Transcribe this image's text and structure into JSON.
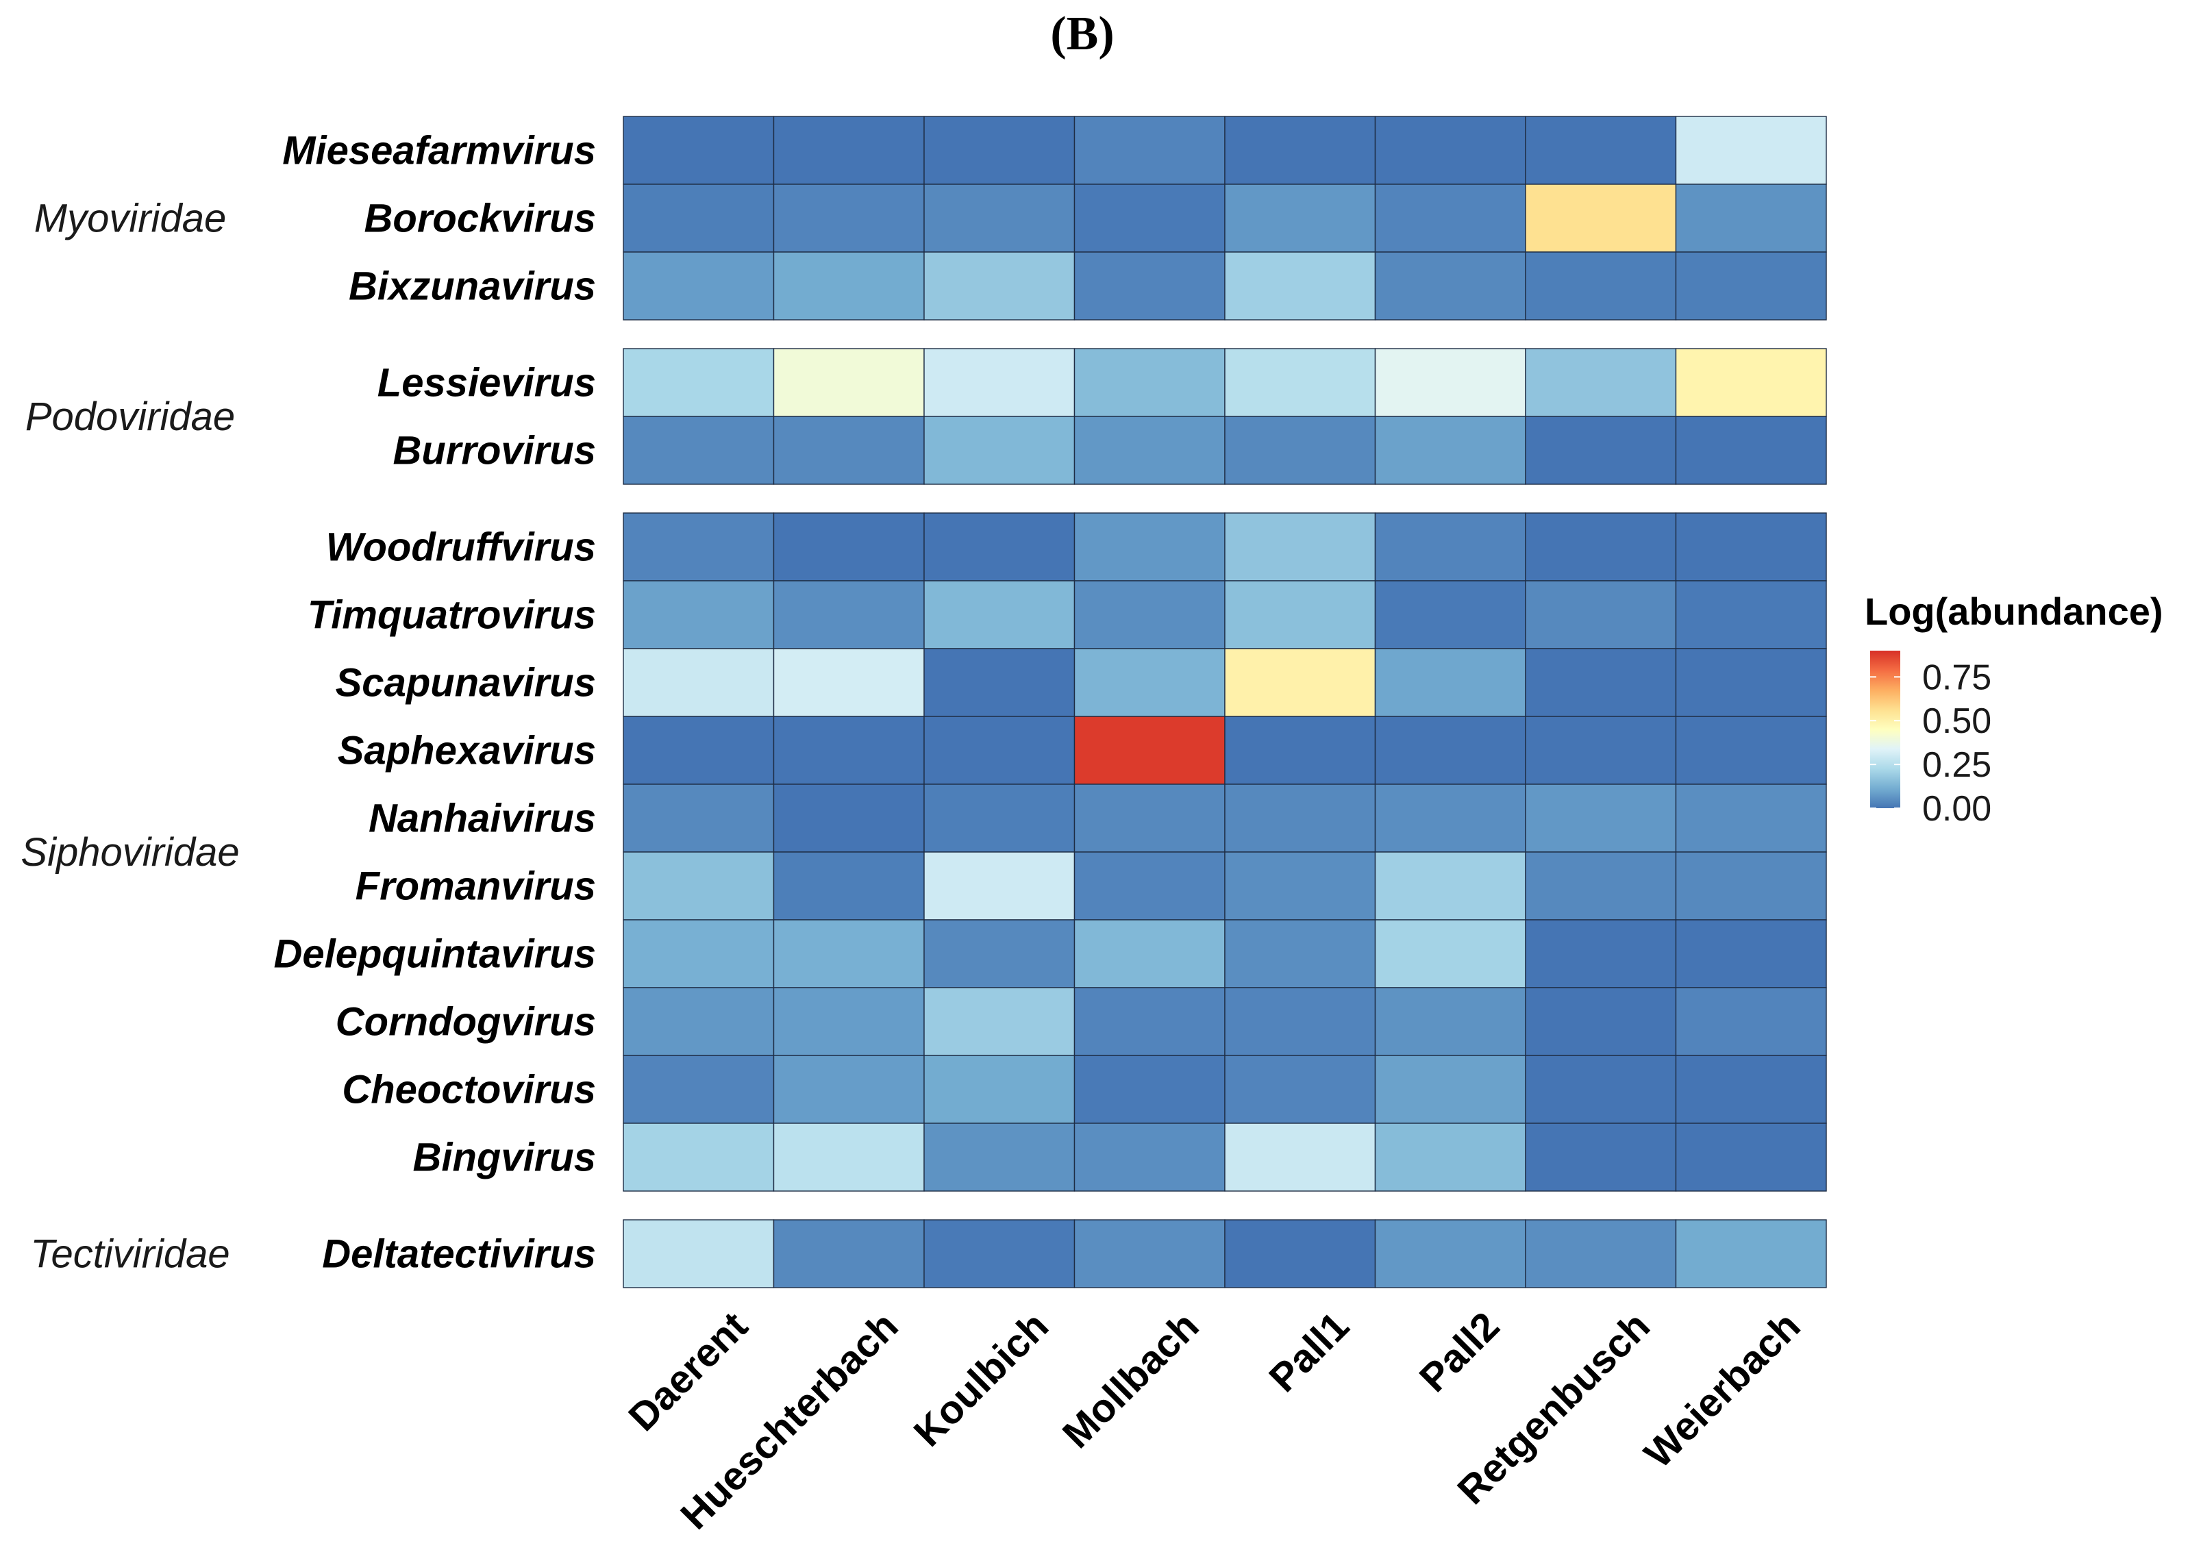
{
  "chart_data": {
    "type": "heatmap",
    "panel_label": "(B)",
    "x": [
      "Daerent",
      "Hueschterbach",
      "Koulbich",
      "Mollbach",
      "Pall1",
      "Pall2",
      "Retgenbusch",
      "Weierbach"
    ],
    "groups": [
      {
        "family": "Myoviridae",
        "rows": [
          {
            "genus": "Mieseafarmvirus",
            "values": [
              0.0,
              0.0,
              0.0,
              0.03,
              0.0,
              0.0,
              0.0,
              0.3
            ]
          },
          {
            "genus": "Borockvirus",
            "values": [
              0.02,
              0.03,
              0.04,
              0.01,
              0.07,
              0.03,
              0.56,
              0.06
            ]
          },
          {
            "genus": "Bixzunavirus",
            "values": [
              0.08,
              0.11,
              0.18,
              0.03,
              0.2,
              0.04,
              0.02,
              0.02
            ]
          }
        ]
      },
      {
        "family": "Podoviridae",
        "rows": [
          {
            "genus": "Lessievirus",
            "values": [
              0.22,
              0.4,
              0.3,
              0.15,
              0.25,
              0.35,
              0.17,
              0.49
            ]
          },
          {
            "genus": "Burrovirus",
            "values": [
              0.04,
              0.04,
              0.14,
              0.07,
              0.04,
              0.09,
              0.0,
              0.0
            ]
          }
        ]
      },
      {
        "family": "Siphoviridae",
        "rows": [
          {
            "genus": "Woodruffvirus",
            "values": [
              0.03,
              0.0,
              0.0,
              0.07,
              0.17,
              0.03,
              0.0,
              0.0
            ]
          },
          {
            "genus": "Timquatrovirus",
            "values": [
              0.09,
              0.05,
              0.14,
              0.05,
              0.16,
              0.01,
              0.04,
              0.01
            ]
          },
          {
            "genus": "Scapunavirus",
            "values": [
              0.29,
              0.31,
              0.0,
              0.13,
              0.5,
              0.1,
              0.0,
              0.0
            ]
          },
          {
            "genus": "Saphexavirus",
            "values": [
              0.0,
              0.0,
              0.0,
              0.88,
              0.0,
              0.0,
              0.0,
              0.0
            ]
          },
          {
            "genus": "Nanhaivirus",
            "values": [
              0.04,
              0.0,
              0.02,
              0.04,
              0.04,
              0.05,
              0.07,
              0.05
            ]
          },
          {
            "genus": "Fromanvirus",
            "values": [
              0.16,
              0.02,
              0.3,
              0.03,
              0.05,
              0.2,
              0.04,
              0.04
            ]
          },
          {
            "genus": "Delepquintavirus",
            "values": [
              0.12,
              0.12,
              0.04,
              0.14,
              0.05,
              0.21,
              0.0,
              0.0
            ]
          },
          {
            "genus": "Corndogvirus",
            "values": [
              0.07,
              0.08,
              0.19,
              0.03,
              0.03,
              0.06,
              0.0,
              0.03
            ]
          },
          {
            "genus": "Cheoctovirus",
            "values": [
              0.03,
              0.08,
              0.11,
              0.01,
              0.03,
              0.09,
              0.0,
              0.0
            ]
          },
          {
            "genus": "Bingvirus",
            "values": [
              0.21,
              0.26,
              0.06,
              0.05,
              0.29,
              0.15,
              0.0,
              0.0
            ]
          }
        ]
      },
      {
        "family": "Tectiviridae",
        "rows": [
          {
            "genus": "Deltatectivirus",
            "values": [
              0.27,
              0.04,
              0.01,
              0.05,
              0.0,
              0.07,
              0.05,
              0.11
            ]
          }
        ]
      }
    ],
    "legend": {
      "title": "Log(abundance)",
      "range": [
        0,
        0.9
      ],
      "ticks": [
        0.0,
        0.25,
        0.5,
        0.75
      ],
      "tick_labels": [
        "0.00",
        "0.25",
        "0.50",
        "0.75"
      ],
      "colors": [
        "#4575b4",
        "#74add1",
        "#abd9e9",
        "#e0f3f8",
        "#ffffbf",
        "#fee090",
        "#fdae61",
        "#f46d43",
        "#d73027"
      ]
    }
  }
}
